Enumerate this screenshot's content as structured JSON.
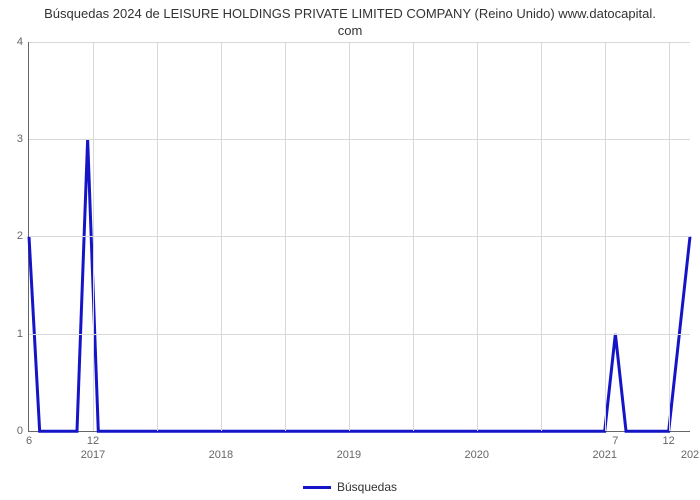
{
  "chart": {
    "type": "line",
    "title_line1": "Búsquedas 2024 de LEISURE HOLDINGS PRIVATE LIMITED COMPANY (Reino Unido) www.datocapital.",
    "title_line2": "com",
    "title_fontsize": 13,
    "title_color": "#333333",
    "background_color": "#ffffff",
    "grid_color": "#d8d8d8",
    "axis_color": "#666666",
    "line_color": "#1515c7",
    "line_width": 3,
    "x_domain_min": 0,
    "x_domain_max": 62,
    "y_domain_min": 0,
    "y_domain_max": 4,
    "y_ticks": [
      0,
      1,
      2,
      3,
      4
    ],
    "x_gridlines": [
      0,
      6,
      12,
      18,
      24,
      30,
      36,
      42,
      48,
      54,
      60
    ],
    "x_tick_month_labels": [
      {
        "pos": 0,
        "label": "6"
      },
      {
        "pos": 6,
        "label": "12"
      },
      {
        "pos": 55,
        "label": "7"
      },
      {
        "pos": 60,
        "label": "12"
      }
    ],
    "x_tick_year_labels": [
      {
        "pos": 6,
        "label": "2017"
      },
      {
        "pos": 18,
        "label": "2018"
      },
      {
        "pos": 30,
        "label": "2019"
      },
      {
        "pos": 42,
        "label": "2020"
      },
      {
        "pos": 54,
        "label": "2021"
      },
      {
        "pos": 62,
        "label": "202"
      }
    ],
    "series": {
      "name": "Búsquedas",
      "points": [
        {
          "x": 0,
          "y": 2
        },
        {
          "x": 1,
          "y": 0
        },
        {
          "x": 4.5,
          "y": 0
        },
        {
          "x": 5.5,
          "y": 3
        },
        {
          "x": 6.5,
          "y": 0
        },
        {
          "x": 54,
          "y": 0
        },
        {
          "x": 55,
          "y": 1
        },
        {
          "x": 56,
          "y": 0
        },
        {
          "x": 60,
          "y": 0
        },
        {
          "x": 62,
          "y": 2
        }
      ]
    },
    "legend_label": "Búsquedas",
    "label_fontsize": 11,
    "label_color": "#666666"
  }
}
